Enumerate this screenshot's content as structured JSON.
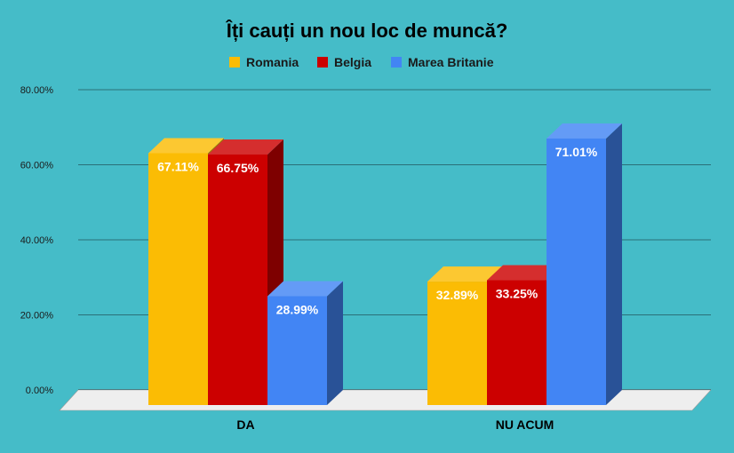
{
  "chart_data": {
    "type": "bar",
    "title": "Îți cauți un nou loc de muncă?",
    "categories": [
      "DA",
      "NU ACUM"
    ],
    "series": [
      {
        "name": "Romania",
        "values": [
          67.11,
          32.89
        ],
        "labels": [
          "67.11%",
          "32.89%"
        ],
        "color": "#fbbc04"
      },
      {
        "name": "Belgia",
        "values": [
          66.75,
          33.25
        ],
        "labels": [
          "66.75%",
          "33.25%"
        ],
        "color": "#cc0000"
      },
      {
        "name": "Marea Britanie",
        "values": [
          28.99,
          71.01
        ],
        "labels": [
          "28.99%",
          "71.01%"
        ],
        "color": "#4285f4"
      }
    ],
    "ylim": [
      0,
      80
    ],
    "yticks": [
      "0.00%",
      "20.00%",
      "40.00%",
      "60.00%",
      "80.00%"
    ],
    "xlabel": "",
    "ylabel": "",
    "grid": true,
    "legend_position": "top",
    "style": "3d"
  }
}
